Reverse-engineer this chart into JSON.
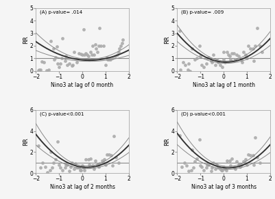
{
  "panels": [
    {
      "label": "(A) p-value= .014",
      "xlabel": "Nino3 at lag of 0 month",
      "ylim": [
        0,
        5
      ],
      "xlim": [
        -2,
        2
      ],
      "curve_params": [
        0.25,
        0.15,
        0.85
      ],
      "ci_scale": 1.2
    },
    {
      "label": "(B) p-value= .009",
      "xlabel": "Nino3 at lag of 1 month",
      "ylim": [
        0,
        5
      ],
      "xlim": [
        -2,
        2
      ],
      "curve_params": [
        0.35,
        0.1,
        0.75
      ],
      "ci_scale": 1.5
    },
    {
      "label": "(C) p-value<0.001",
      "xlabel": "Nino3 at lag of 2 months",
      "ylim": [
        0,
        6
      ],
      "xlim": [
        -2,
        2
      ],
      "curve_params": [
        0.55,
        0.1,
        0.65
      ],
      "ci_scale": 2.0
    },
    {
      "label": "(D) p-value<0.001",
      "xlabel": "Nino3 at lag of 3 months",
      "ylim": [
        0,
        6
      ],
      "xlim": [
        -2,
        2
      ],
      "curve_params": [
        0.55,
        0.1,
        0.65
      ],
      "ci_scale": 2.0
    }
  ],
  "scatter_color": "#aaaaaa",
  "scatter_size": 12,
  "curve_color_main": "#333333",
  "curve_color_ci": "#888888",
  "hline_color": "#888888",
  "hline_y": 1.0,
  "background_color": "#f5f5f5",
  "ylabel": "RR",
  "panel_A_scatter_x": [
    -1.9,
    -1.85,
    -1.8,
    -1.75,
    -1.65,
    -1.55,
    -1.45,
    -1.35,
    -1.25,
    -1.2,
    -1.15,
    -1.1,
    -1.05,
    -1.0,
    -0.95,
    -0.9,
    -0.85,
    -0.75,
    -0.7,
    -0.65,
    -0.55,
    -0.45,
    -0.4,
    -0.35,
    -0.25,
    -0.15,
    -0.05,
    0.0,
    0.05,
    0.1,
    0.15,
    0.2,
    0.25,
    0.3,
    0.35,
    0.4,
    0.45,
    0.5,
    0.55,
    0.6,
    0.65,
    0.7,
    0.75,
    0.8,
    0.9,
    1.0,
    1.05,
    1.1,
    1.15,
    1.2,
    1.3,
    1.4,
    1.5,
    1.55,
    1.6,
    1.65,
    1.7,
    1.75
  ],
  "panel_A_scatter_y": [
    0.05,
    0.1,
    0.1,
    0.75,
    0.7,
    0.05,
    0.1,
    2.4,
    1.8,
    0.9,
    1.1,
    1.95,
    0.6,
    0.3,
    0.6,
    1.0,
    2.6,
    0.8,
    1.2,
    0.5,
    0.6,
    0.4,
    0.5,
    1.5,
    0.7,
    1.4,
    1.35,
    1.3,
    3.3,
    1.3,
    1.4,
    1.3,
    1.2,
    0.9,
    1.5,
    1.3,
    2.0,
    1.3,
    2.1,
    1.8,
    1.5,
    2.0,
    3.4,
    2.0,
    2.0,
    0.5,
    1.1,
    0.9,
    0.9,
    0.9,
    1.0,
    1.2,
    1.3,
    1.5,
    1.8,
    2.0,
    2.2,
    2.5
  ],
  "panel_B_scatter_x": [
    -1.9,
    -1.85,
    -1.75,
    -1.65,
    -1.55,
    -1.45,
    -1.35,
    -1.25,
    -1.15,
    -1.05,
    -0.95,
    -0.85,
    -0.75,
    -0.65,
    -0.55,
    -0.45,
    -0.35,
    -0.25,
    -0.15,
    -0.05,
    0.0,
    0.05,
    0.15,
    0.25,
    0.35,
    0.45,
    0.55,
    0.65,
    0.75,
    0.85,
    0.95,
    1.05,
    1.15,
    1.25,
    1.35,
    1.45,
    1.55,
    1.65,
    -1.5,
    -0.7,
    -0.3,
    0.3,
    0.8,
    1.3,
    -1.0,
    -0.5,
    0.0,
    0.5,
    1.0,
    0.2
  ],
  "panel_B_scatter_y": [
    3.2,
    0.1,
    0.7,
    0.5,
    0.1,
    0.0,
    1.8,
    0.9,
    1.0,
    2.0,
    0.5,
    0.3,
    0.6,
    1.1,
    0.8,
    1.3,
    0.5,
    0.7,
    0.5,
    0.3,
    1.5,
    0.7,
    1.5,
    1.2,
    1.4,
    1.4,
    1.3,
    1.2,
    0.9,
    1.5,
    1.3,
    2.0,
    1.8,
    1.8,
    2.0,
    3.4,
    2.0,
    1.5,
    0.6,
    1.0,
    0.9,
    0.9,
    0.7,
    0.8,
    1.2,
    0.7,
    0.9,
    0.9,
    1.0,
    1.3
  ],
  "panel_C_scatter_x": [
    -1.9,
    -1.8,
    -1.7,
    -1.6,
    -1.5,
    -1.4,
    -1.35,
    -1.25,
    -1.15,
    -1.05,
    -0.95,
    -0.85,
    -0.75,
    -0.65,
    -0.55,
    -0.45,
    -0.35,
    -0.25,
    -0.15,
    -0.05,
    0.05,
    0.15,
    0.25,
    0.35,
    0.45,
    0.55,
    0.65,
    0.75,
    0.85,
    0.95,
    1.05,
    1.15,
    1.25,
    1.35,
    1.45,
    1.55,
    -0.5,
    -0.3,
    0.0,
    0.3,
    0.5,
    0.7,
    -1.3,
    -1.0,
    -0.7,
    1.0,
    1.3,
    -0.1,
    0.1,
    0.9
  ],
  "panel_C_scatter_y": [
    2.6,
    0.5,
    1.0,
    0.6,
    0.1,
    0.3,
    2.0,
    1.0,
    1.3,
    3.0,
    0.5,
    0.3,
    0.5,
    0.8,
    0.2,
    1.0,
    0.4,
    0.5,
    0.5,
    0.3,
    0.5,
    1.3,
    1.3,
    1.4,
    0.7,
    1.2,
    0.8,
    0.9,
    1.2,
    1.3,
    1.8,
    1.8,
    1.7,
    3.5,
    1.5,
    1.0,
    0.6,
    0.9,
    0.7,
    0.8,
    0.4,
    0.6,
    0.5,
    0.8,
    0.8,
    0.8,
    0.7,
    0.3,
    0.3,
    1.0
  ],
  "panel_D_scatter_x": [
    -1.9,
    -1.8,
    -1.7,
    -1.6,
    -1.5,
    -1.4,
    -1.35,
    -1.25,
    -1.15,
    -1.05,
    -0.95,
    -0.85,
    -0.75,
    -0.65,
    -0.55,
    -0.45,
    -0.35,
    -0.25,
    -0.15,
    -0.05,
    0.05,
    0.15,
    0.25,
    0.35,
    0.45,
    0.55,
    0.65,
    0.75,
    0.85,
    0.95,
    1.05,
    1.15,
    1.25,
    1.35,
    1.45,
    1.55,
    -0.5,
    -0.3,
    0.0,
    0.3,
    0.5,
    0.7,
    -1.3,
    -1.0,
    -0.7,
    1.0,
    1.3,
    -0.1,
    0.1,
    0.9
  ],
  "panel_D_scatter_y": [
    3.6,
    0.6,
    1.0,
    0.7,
    0.2,
    0.3,
    2.2,
    1.1,
    1.4,
    3.2,
    0.6,
    0.3,
    0.5,
    0.8,
    0.2,
    1.0,
    0.4,
    0.5,
    0.4,
    0.3,
    0.4,
    1.2,
    1.2,
    1.4,
    0.6,
    1.1,
    0.8,
    0.8,
    1.1,
    1.3,
    1.8,
    1.7,
    1.7,
    3.4,
    1.5,
    1.0,
    0.5,
    0.8,
    0.6,
    0.7,
    0.4,
    0.6,
    0.5,
    0.7,
    0.8,
    0.8,
    0.8,
    0.3,
    0.3,
    1.0
  ]
}
